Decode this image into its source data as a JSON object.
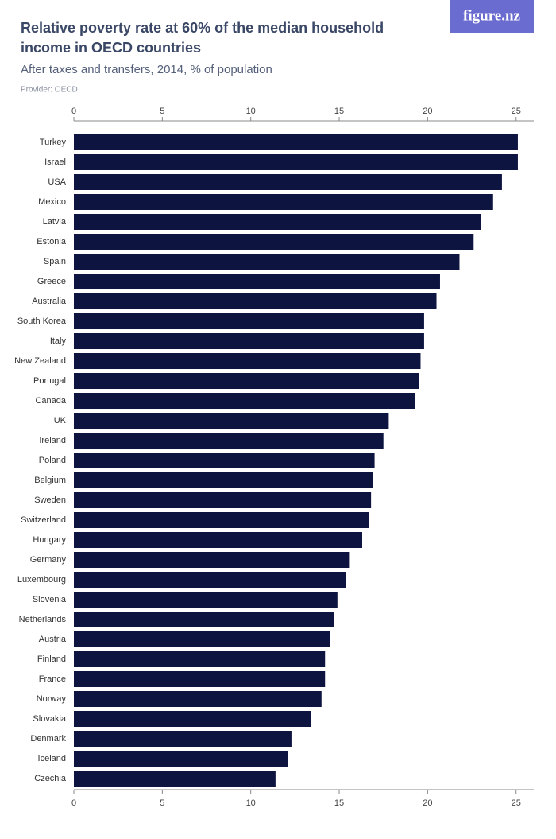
{
  "logo": "figure.nz",
  "chart_data": {
    "type": "barh",
    "title": "Relative poverty rate at 60% of the median household income in OECD countries",
    "subtitle": "After taxes and transfers, 2014, % of population",
    "provider": "Provider: OECD",
    "categories": [
      "Turkey",
      "Israel",
      "USA",
      "Mexico",
      "Latvia",
      "Estonia",
      "Spain",
      "Greece",
      "Australia",
      "South Korea",
      "Italy",
      "New Zealand",
      "Portugal",
      "Canada",
      "UK",
      "Ireland",
      "Poland",
      "Belgium",
      "Sweden",
      "Switzerland",
      "Hungary",
      "Germany",
      "Luxembourg",
      "Slovenia",
      "Netherlands",
      "Austria",
      "Finland",
      "France",
      "Norway",
      "Slovakia",
      "Denmark",
      "Iceland",
      "Czechia"
    ],
    "values": [
      25.1,
      25.1,
      24.2,
      23.7,
      23.0,
      22.6,
      21.8,
      20.7,
      20.5,
      19.8,
      19.8,
      19.6,
      19.5,
      19.3,
      17.8,
      17.5,
      17.0,
      16.9,
      16.8,
      16.7,
      16.3,
      15.6,
      15.4,
      14.9,
      14.7,
      14.5,
      14.2,
      14.2,
      14.0,
      13.4,
      12.3,
      12.1,
      11.4
    ],
    "color": "#0d1440",
    "xlim": [
      0,
      26
    ],
    "xticks": [
      0,
      5,
      10,
      15,
      20,
      25
    ]
  }
}
